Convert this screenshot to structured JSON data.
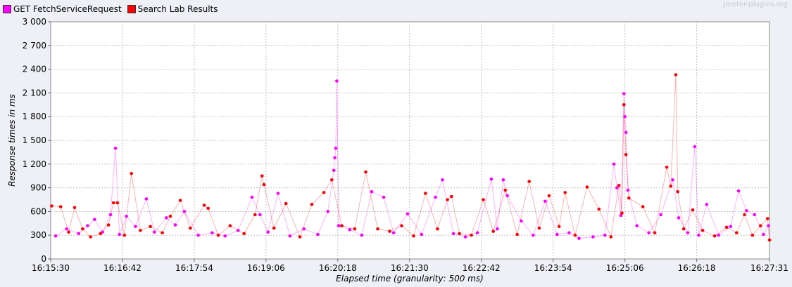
{
  "watermark": "jmeter-plugins.org",
  "chart_data": {
    "type": "line",
    "title": "",
    "xlabel": "Elapsed time (granularity: 500 ms)",
    "ylabel": "Response times in ms",
    "x_tick_labels": [
      "16:15:30",
      "16:16:42",
      "16:17:54",
      "16:19:06",
      "16:20:18",
      "16:21:30",
      "16:22:42",
      "16:23:54",
      "16:25:06",
      "16:26:18",
      "16:27:31"
    ],
    "y_tick_labels": [
      "0",
      "300",
      "600",
      "900",
      "1 200",
      "1 500",
      "1 800",
      "2 100",
      "2 400",
      "2 700",
      "3 000"
    ],
    "xlim": [
      "16:15:30",
      "16:27:31"
    ],
    "ylim": [
      0,
      3000
    ],
    "grid": true,
    "legend_position": "top-left",
    "series": [
      {
        "name": "GET FetchServiceRequest",
        "color": "#ff00ff",
        "points": [
          [
            "16:15:35",
            290
          ],
          [
            "16:15:46",
            380
          ],
          [
            "16:15:58",
            320
          ],
          [
            "16:16:07",
            420
          ],
          [
            "16:16:14",
            500
          ],
          [
            "16:16:22",
            340
          ],
          [
            "16:16:30",
            560
          ],
          [
            "16:16:35",
            1400
          ],
          [
            "16:16:39",
            310
          ],
          [
            "16:16:46",
            540
          ],
          [
            "16:16:55",
            410
          ],
          [
            "16:17:06",
            760
          ],
          [
            "16:17:14",
            340
          ],
          [
            "16:17:26",
            520
          ],
          [
            "16:17:35",
            430
          ],
          [
            "16:17:44",
            600
          ],
          [
            "16:17:58",
            300
          ],
          [
            "16:18:12",
            330
          ],
          [
            "16:18:25",
            290
          ],
          [
            "16:18:38",
            360
          ],
          [
            "16:18:52",
            780
          ],
          [
            "16:19:00",
            560
          ],
          [
            "16:19:08",
            340
          ],
          [
            "16:19:18",
            830
          ],
          [
            "16:19:30",
            290
          ],
          [
            "16:19:44",
            380
          ],
          [
            "16:19:58",
            310
          ],
          [
            "16:20:08",
            600
          ],
          [
            "16:20:14",
            1120
          ],
          [
            "16:20:15",
            1280
          ],
          [
            "16:20:16",
            1400
          ],
          [
            "16:20:17",
            2250
          ],
          [
            "16:20:19",
            420
          ],
          [
            "16:20:30",
            370
          ],
          [
            "16:20:42",
            300
          ],
          [
            "16:20:52",
            850
          ],
          [
            "16:21:04",
            780
          ],
          [
            "16:21:14",
            330
          ],
          [
            "16:21:28",
            570
          ],
          [
            "16:21:42",
            310
          ],
          [
            "16:21:56",
            780
          ],
          [
            "16:22:03",
            1000
          ],
          [
            "16:22:14",
            320
          ],
          [
            "16:22:26",
            280
          ],
          [
            "16:22:38",
            330
          ],
          [
            "16:22:52",
            1010
          ],
          [
            "16:22:58",
            380
          ],
          [
            "16:23:04",
            1000
          ],
          [
            "16:23:08",
            800
          ],
          [
            "16:23:22",
            480
          ],
          [
            "16:23:34",
            300
          ],
          [
            "16:23:46",
            730
          ],
          [
            "16:23:58",
            310
          ],
          [
            "16:24:10",
            330
          ],
          [
            "16:24:20",
            260
          ],
          [
            "16:24:34",
            280
          ],
          [
            "16:24:46",
            300
          ],
          [
            "16:24:55",
            1200
          ],
          [
            "16:24:58",
            900
          ],
          [
            "16:25:02",
            550
          ],
          [
            "16:25:05",
            2090
          ],
          [
            "16:25:06",
            1800
          ],
          [
            "16:25:07",
            1600
          ],
          [
            "16:25:09",
            870
          ],
          [
            "16:25:18",
            420
          ],
          [
            "16:25:30",
            330
          ],
          [
            "16:25:42",
            560
          ],
          [
            "16:25:54",
            1000
          ],
          [
            "16:26:00",
            520
          ],
          [
            "16:26:09",
            330
          ],
          [
            "16:26:16",
            1420
          ],
          [
            "16:26:20",
            300
          ],
          [
            "16:26:28",
            690
          ],
          [
            "16:26:40",
            300
          ],
          [
            "16:26:52",
            410
          ],
          [
            "16:27:00",
            860
          ],
          [
            "16:27:08",
            610
          ],
          [
            "16:27:16",
            560
          ],
          [
            "16:27:25",
            310
          ],
          [
            "16:27:30",
            420
          ]
        ]
      },
      {
        "name": "Search Lab Results",
        "color": "#ff0000",
        "points": [
          [
            "16:15:31",
            670
          ],
          [
            "16:15:40",
            660
          ],
          [
            "16:15:48",
            340
          ],
          [
            "16:15:54",
            650
          ],
          [
            "16:16:02",
            380
          ],
          [
            "16:16:10",
            280
          ],
          [
            "16:16:20",
            320
          ],
          [
            "16:16:28",
            430
          ],
          [
            "16:16:33",
            710
          ],
          [
            "16:16:37",
            710
          ],
          [
            "16:16:44",
            300
          ],
          [
            "16:16:51",
            1080
          ],
          [
            "16:17:00",
            360
          ],
          [
            "16:17:10",
            410
          ],
          [
            "16:17:22",
            330
          ],
          [
            "16:17:30",
            540
          ],
          [
            "16:17:40",
            740
          ],
          [
            "16:17:50",
            390
          ],
          [
            "16:18:04",
            680
          ],
          [
            "16:18:08",
            640
          ],
          [
            "16:18:18",
            300
          ],
          [
            "16:18:30",
            420
          ],
          [
            "16:18:44",
            320
          ],
          [
            "16:18:55",
            560
          ],
          [
            "16:19:02",
            1050
          ],
          [
            "16:19:04",
            940
          ],
          [
            "16:19:14",
            390
          ],
          [
            "16:19:26",
            700
          ],
          [
            "16:19:40",
            280
          ],
          [
            "16:19:52",
            690
          ],
          [
            "16:20:04",
            840
          ],
          [
            "16:20:12",
            1000
          ],
          [
            "16:20:22",
            420
          ],
          [
            "16:20:35",
            380
          ],
          [
            "16:20:46",
            1100
          ],
          [
            "16:20:58",
            380
          ],
          [
            "16:21:10",
            350
          ],
          [
            "16:21:22",
            420
          ],
          [
            "16:21:34",
            290
          ],
          [
            "16:21:46",
            830
          ],
          [
            "16:21:58",
            380
          ],
          [
            "16:22:08",
            750
          ],
          [
            "16:22:12",
            790
          ],
          [
            "16:22:20",
            320
          ],
          [
            "16:22:32",
            300
          ],
          [
            "16:22:44",
            750
          ],
          [
            "16:22:54",
            350
          ],
          [
            "16:23:06",
            870
          ],
          [
            "16:23:18",
            310
          ],
          [
            "16:23:30",
            980
          ],
          [
            "16:23:40",
            390
          ],
          [
            "16:23:50",
            800
          ],
          [
            "16:24:00",
            410
          ],
          [
            "16:24:06",
            840
          ],
          [
            "16:24:16",
            300
          ],
          [
            "16:24:28",
            910
          ],
          [
            "16:24:40",
            630
          ],
          [
            "16:24:52",
            280
          ],
          [
            "16:25:00",
            930
          ],
          [
            "16:25:03",
            580
          ],
          [
            "16:25:05",
            1950
          ],
          [
            "16:25:07",
            1320
          ],
          [
            "16:25:10",
            770
          ],
          [
            "16:25:24",
            660
          ],
          [
            "16:25:36",
            330
          ],
          [
            "16:25:48",
            1160
          ],
          [
            "16:25:52",
            920
          ],
          [
            "16:25:57",
            2330
          ],
          [
            "16:25:59",
            850
          ],
          [
            "16:26:05",
            380
          ],
          [
            "16:26:14",
            620
          ],
          [
            "16:26:24",
            360
          ],
          [
            "16:26:36",
            290
          ],
          [
            "16:26:48",
            400
          ],
          [
            "16:26:58",
            330
          ],
          [
            "16:27:06",
            560
          ],
          [
            "16:27:14",
            300
          ],
          [
            "16:27:22",
            420
          ],
          [
            "16:27:29",
            510
          ],
          [
            "16:27:31",
            240
          ]
        ]
      }
    ]
  }
}
